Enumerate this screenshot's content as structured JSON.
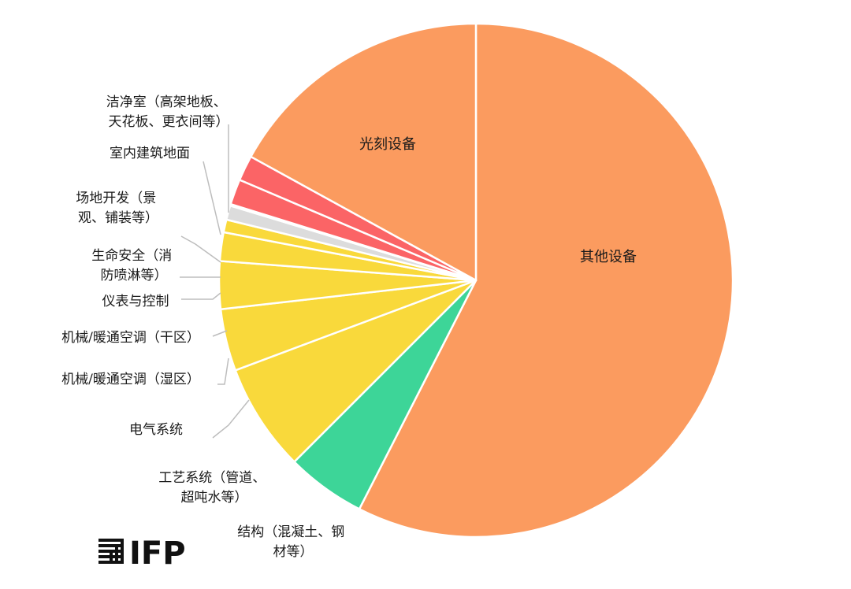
{
  "chart_data": {
    "type": "pie",
    "start": "12 o'clock",
    "direction": "clockwise",
    "slices": [
      {
        "label": "其他设备",
        "value": 57.5,
        "color": "#FB9B5F"
      },
      {
        "label": "结构（混凝土、钢材等）",
        "value": 5.0,
        "color": "#3DD598"
      },
      {
        "label": "工艺系统（管道、超吨水等）",
        "value": 6.8,
        "color": "#F9D93B"
      },
      {
        "label": "电气系统",
        "value": 3.9,
        "color": "#F9D93B"
      },
      {
        "label": "机械/暖通空调（湿区）",
        "value": 3.0,
        "color": "#F9D93B"
      },
      {
        "label": "机械/暖通空调（干区）",
        "value": 1.8,
        "color": "#F9D93B"
      },
      {
        "label": "仪表与控制",
        "value": 0.8,
        "color": "#F9D93B"
      },
      {
        "label": "生命安全（消防喷淋等）",
        "value": 0.9,
        "color": "#DCDCDC"
      },
      {
        "label": "场地开发（景观、铺装等）",
        "value": 0.1,
        "color": "#FB6466"
      },
      {
        "label": "室内建筑地面",
        "value": 1.6,
        "color": "#FB6466"
      },
      {
        "label": "洁净室（高架地板、天花板、更衣间等）",
        "value": 1.6,
        "color": "#FB6466"
      },
      {
        "label": "光刻设备",
        "value": 17.0,
        "color": "#FB9B5F"
      }
    ]
  },
  "labels": {
    "other_equipment": "其他设备",
    "lithography": "光刻设备",
    "structure": [
      "结构（混凝土、钢",
      "材等）"
    ],
    "process": [
      "工艺系统（管道、",
      "超吨水等）"
    ],
    "electrical": "电气系统",
    "hvac_wet": "机械/暖通空调（湿区）",
    "hvac_dry": "机械/暖通空调（干区）",
    "instrument": "仪表与控制",
    "life_safety": [
      "生命安全（消",
      "防喷淋等）"
    ],
    "site": [
      "场地开发（景",
      "观、铺装等）"
    ],
    "interior_floor": "室内建筑地面",
    "cleanroom": [
      "洁净室（高架地板、",
      "天花板、更衣间等）"
    ]
  },
  "logo": {
    "text": "IFP",
    "name": "ifp-logo"
  }
}
